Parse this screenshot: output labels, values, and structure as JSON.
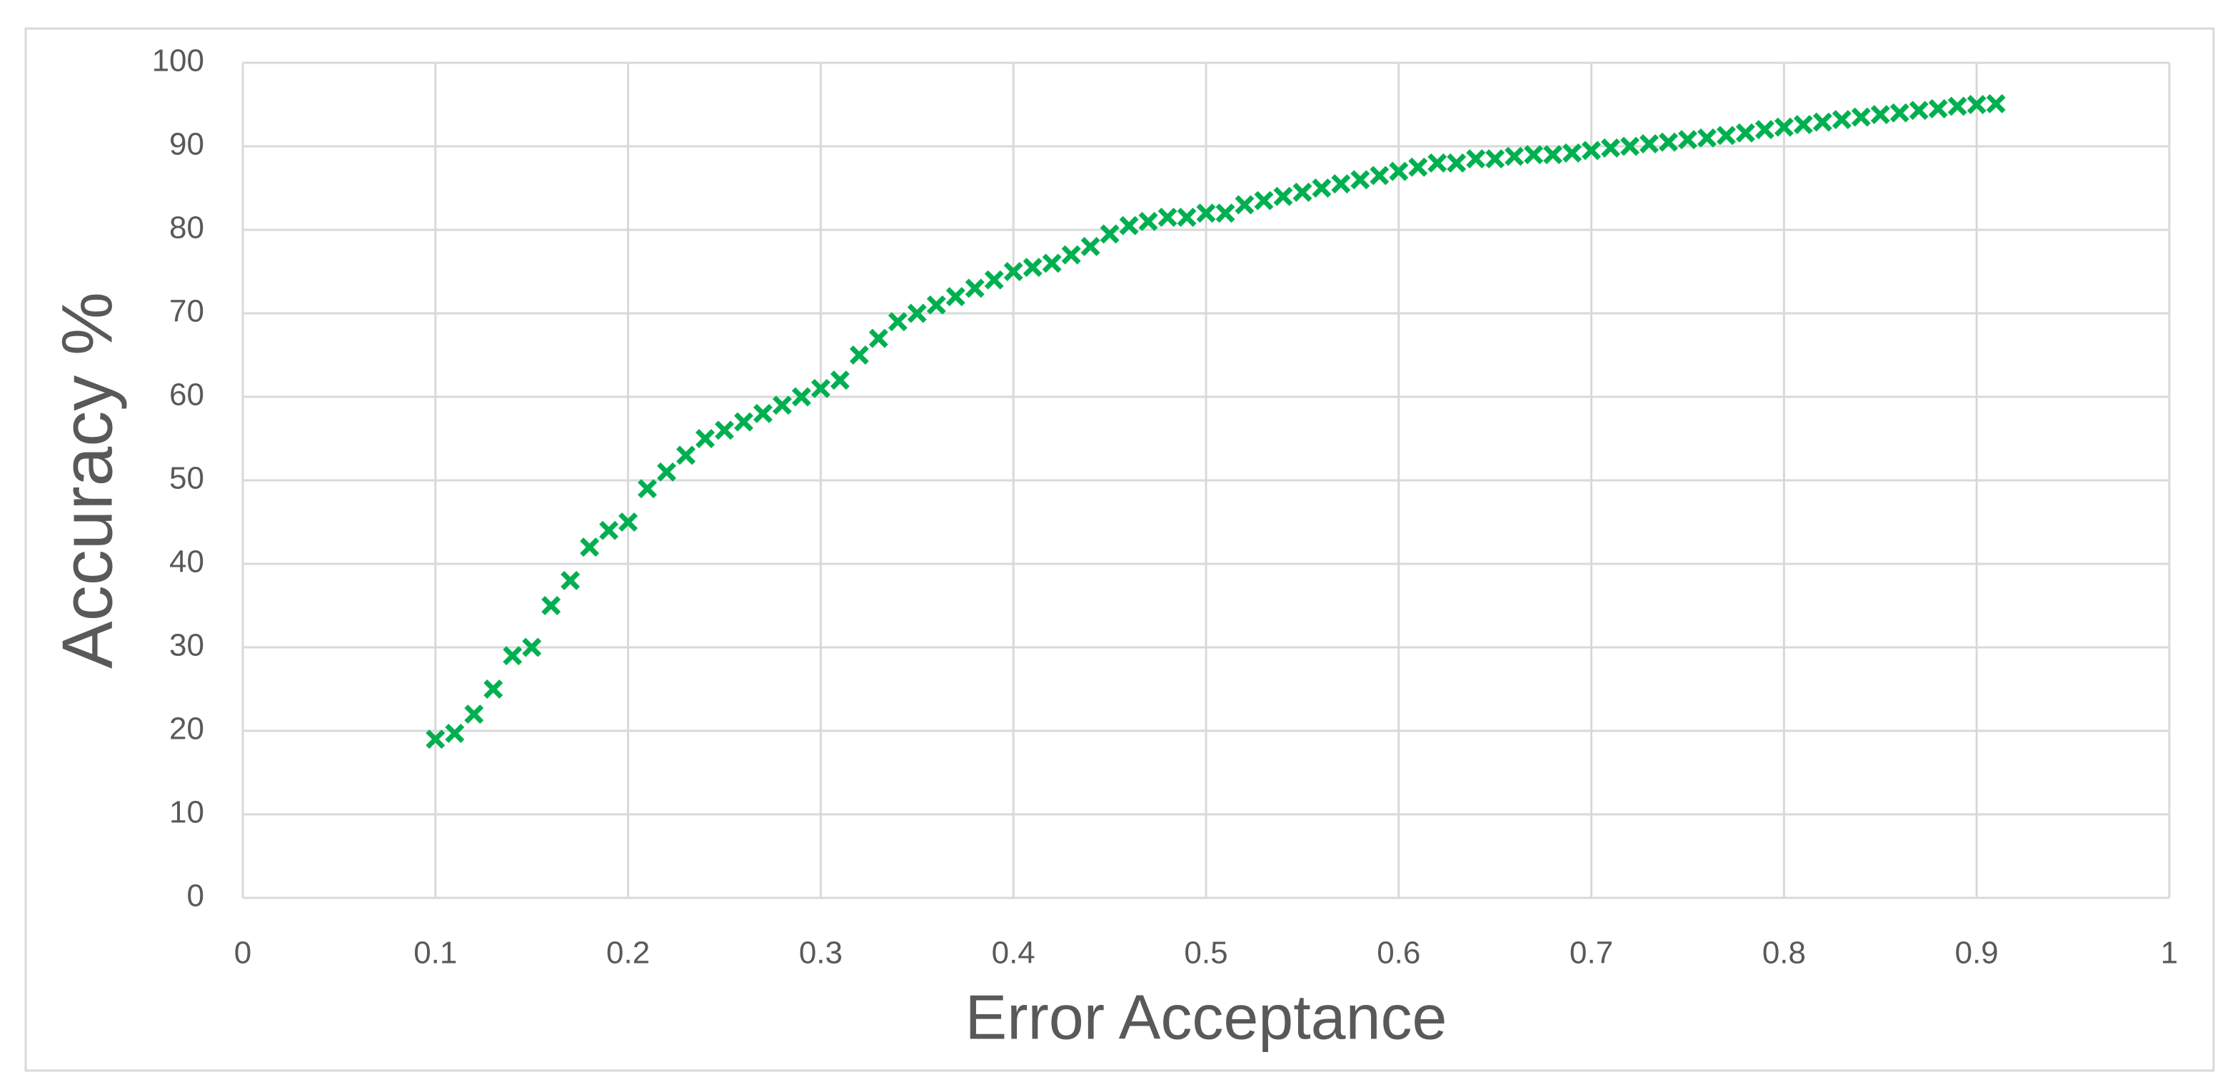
{
  "chart_data": {
    "type": "scatter",
    "x_label": "Error Acceptance",
    "y_label": "Accuracy %",
    "x": [
      0.1,
      0.11,
      0.12,
      0.13,
      0.14,
      0.15,
      0.16,
      0.17,
      0.18,
      0.19,
      0.2,
      0.21,
      0.22,
      0.23,
      0.24,
      0.25,
      0.26,
      0.27,
      0.28,
      0.29,
      0.3,
      0.31,
      0.32,
      0.33,
      0.34,
      0.35,
      0.36,
      0.37,
      0.38,
      0.39,
      0.4,
      0.41,
      0.42,
      0.43,
      0.44,
      0.45,
      0.46,
      0.47,
      0.48,
      0.49,
      0.5,
      0.51,
      0.52,
      0.53,
      0.54,
      0.55,
      0.56,
      0.57,
      0.58,
      0.59,
      0.6,
      0.61,
      0.62,
      0.63,
      0.64,
      0.65,
      0.66,
      0.67,
      0.68,
      0.69,
      0.7,
      0.71,
      0.72,
      0.73,
      0.74,
      0.75,
      0.76,
      0.77,
      0.78,
      0.79,
      0.8,
      0.81,
      0.82,
      0.83,
      0.84,
      0.85,
      0.86,
      0.87,
      0.88,
      0.89,
      0.9,
      0.91
    ],
    "values": [
      19,
      19.7,
      22,
      25,
      29,
      30,
      35,
      38,
      42,
      44,
      45,
      49,
      51,
      53,
      55,
      56,
      57,
      58,
      59,
      60,
      61,
      62,
      65,
      67,
      69,
      70,
      71,
      72,
      73,
      74,
      75,
      75.5,
      76,
      77,
      78,
      79.5,
      80.5,
      81,
      81.5,
      81.5,
      82,
      82,
      83,
      83.5,
      84,
      84.5,
      85,
      85.5,
      86,
      86.5,
      87,
      87.5,
      88,
      88,
      88.5,
      88.5,
      88.8,
      89,
      89,
      89.2,
      89.5,
      89.8,
      90,
      90.3,
      90.5,
      90.8,
      91,
      91.3,
      91.6,
      92,
      92.3,
      92.6,
      92.9,
      93.2,
      93.5,
      93.8,
      94,
      94.3,
      94.5,
      94.8,
      95,
      95.1
    ],
    "color": "#00b050",
    "marker": "x",
    "xlim": [
      0,
      1
    ],
    "xticks": [
      0,
      0.1,
      0.2,
      0.3,
      0.4,
      0.5,
      0.6,
      0.7,
      0.8,
      0.9,
      1
    ],
    "ylim": [
      0,
      100
    ],
    "yticks": [
      0,
      10,
      20,
      30,
      40,
      50,
      60,
      70,
      80,
      90,
      100
    ],
    "grid": true
  }
}
